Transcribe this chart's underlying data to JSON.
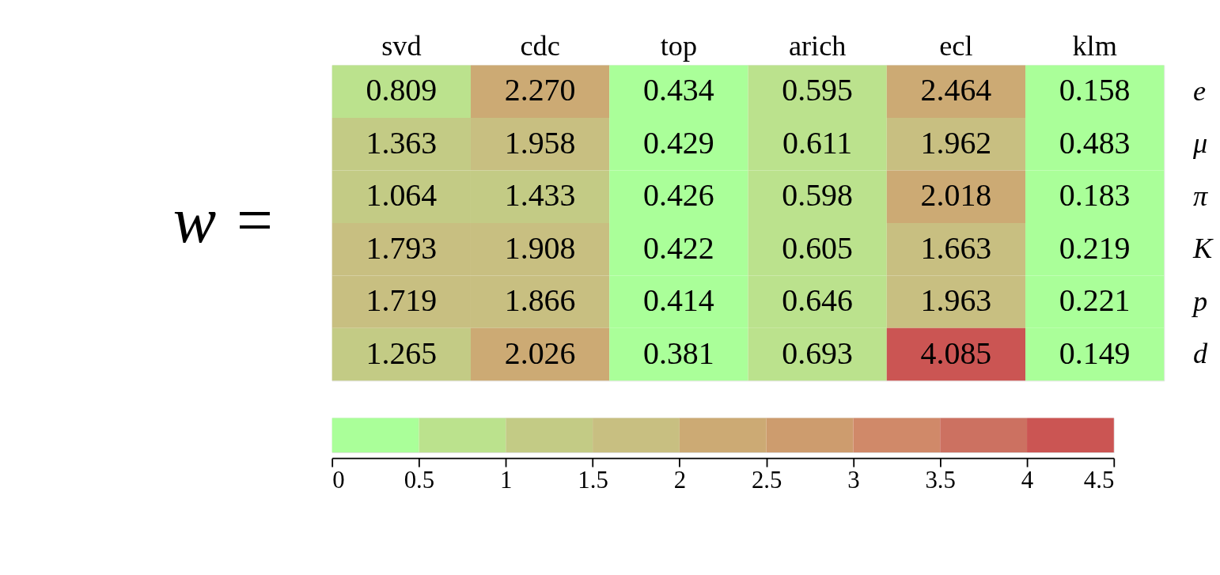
{
  "chart_data": {
    "type": "heatmap",
    "annotations": [
      "w ="
    ],
    "categories": [
      "svd",
      "cdc",
      "top",
      "arich",
      "ecl",
      "klm"
    ],
    "y_categories": [
      "e",
      "μ",
      "π",
      "K",
      "p",
      "d"
    ],
    "cells": [
      [
        0.809,
        2.27,
        0.434,
        0.595,
        2.464,
        0.158
      ],
      [
        1.363,
        1.958,
        0.429,
        0.611,
        1.962,
        0.483
      ],
      [
        1.064,
        1.433,
        0.426,
        0.598,
        2.018,
        0.183
      ],
      [
        1.793,
        1.908,
        0.422,
        0.605,
        1.663,
        0.219
      ],
      [
        1.719,
        1.866,
        0.414,
        0.646,
        1.963,
        0.221
      ],
      [
        1.265,
        2.026,
        0.381,
        0.693,
        4.085,
        0.149
      ]
    ],
    "cell_labels": [
      [
        "0.809",
        "2.270",
        "0.434",
        "0.595",
        "2.464",
        "0.158"
      ],
      [
        "1.363",
        "1.958",
        "0.429",
        "0.611",
        "1.962",
        "0.483"
      ],
      [
        "1.064",
        "1.433",
        "0.426",
        "0.598",
        "2.018",
        "0.183"
      ],
      [
        "1.793",
        "1.908",
        "0.422",
        "0.605",
        "1.663",
        "0.219"
      ],
      [
        "1.719",
        "1.866",
        "0.414",
        "0.646",
        "1.963",
        "0.221"
      ],
      [
        "1.265",
        "2.026",
        "0.381",
        "0.693",
        "4.085",
        "0.149"
      ]
    ],
    "clim": [
      0,
      4.5
    ],
    "cticks": [
      0,
      0.5,
      1,
      1.5,
      2,
      2.5,
      3,
      3.5,
      4,
      4.5
    ],
    "colors": [
      "#aaff99",
      "#bbe28d",
      "#c3cb85",
      "#c8bf81",
      "#ccaa74",
      "#cd9c6e",
      "#d08969",
      "#cc7161",
      "#cb5553"
    ],
    "grid": false
  }
}
